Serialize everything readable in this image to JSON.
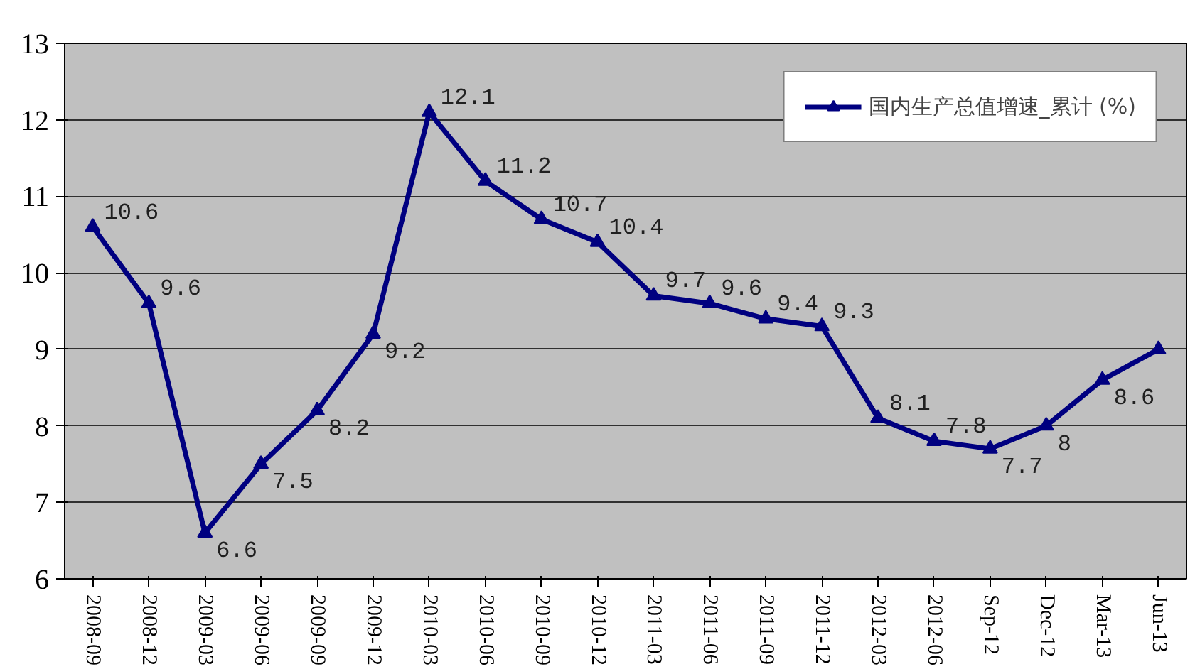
{
  "chart_data": {
    "type": "line",
    "categories": [
      "2008-09",
      "2008-12",
      "2009-03",
      "2009-06",
      "2009-09",
      "2009-12",
      "2010-03",
      "2010-06",
      "2010-09",
      "2010-12",
      "2011-03",
      "2011-06",
      "2011-09",
      "2011-12",
      "2012-03",
      "2012-06",
      "Sep-12",
      "Dec-12",
      "Mar-13",
      "Jun-13"
    ],
    "series": [
      {
        "name": "国内生产总值增速_累计 (%)",
        "color": "#000080",
        "values": [
          10.6,
          9.6,
          6.6,
          7.5,
          8.2,
          9.2,
          12.1,
          11.2,
          10.7,
          10.4,
          9.7,
          9.6,
          9.4,
          9.3,
          8.1,
          7.8,
          7.7,
          8,
          8.6,
          9.0
        ],
        "value_labels": [
          "10.6",
          "9.6",
          "6.6",
          "7.5",
          "8.2",
          "9.2",
          "12.1",
          "11.2",
          "10.7",
          "10.4",
          "9.7",
          "9.6",
          "9.4",
          "9.3",
          "8.1",
          "7.8",
          "7.7",
          "8",
          "8.6",
          null
        ]
      }
    ],
    "ylim": [
      6,
      13
    ],
    "yticks": [
      6,
      7,
      8,
      9,
      10,
      11,
      12,
      13
    ],
    "grid": "y",
    "legend": "top right",
    "marker": "triangle",
    "line_style": "solid"
  }
}
